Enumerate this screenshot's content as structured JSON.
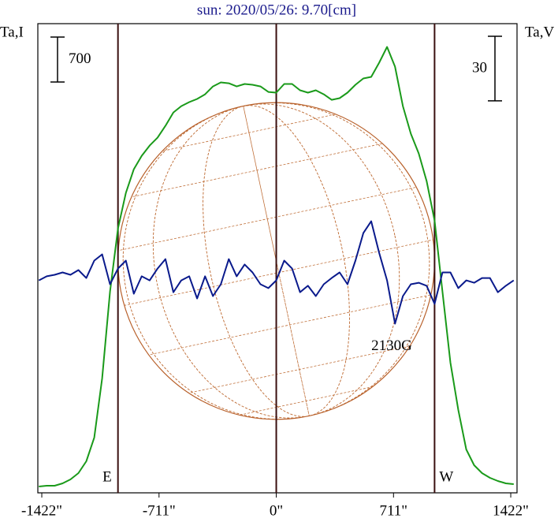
{
  "chart_data": {
    "type": "line",
    "title": "sun: 2020/05/26: 9.70[cm]",
    "y_label": "Ta,I",
    "y2_label": "Ta,V",
    "x": [
      -1440,
      -1392,
      -1344,
      -1296,
      -1248,
      -1200,
      -1152,
      -1104,
      -1056,
      -1008,
      -960,
      -912,
      -864,
      -816,
      -768,
      -720,
      -672,
      -624,
      -576,
      -528,
      -480,
      -432,
      -384,
      -336,
      -288,
      -240,
      -192,
      -144,
      -96,
      -48,
      0,
      48,
      96,
      144,
      192,
      240,
      288,
      336,
      384,
      432,
      480,
      528,
      576,
      624,
      672,
      720,
      768,
      816,
      864,
      912,
      960,
      1008,
      1056,
      1104,
      1152,
      1200,
      1248,
      1296,
      1344,
      1392,
      1440
    ],
    "series": [
      {
        "name": "I",
        "color": "#1a9a1a",
        "axis": "y",
        "values": [
          98,
          111,
          111,
          147,
          209,
          307,
          491,
          860,
          1780,
          3131,
          4114,
          4666,
          5035,
          5244,
          5403,
          5526,
          5710,
          5919,
          6017,
          6079,
          6128,
          6201,
          6324,
          6386,
          6373,
          6324,
          6361,
          6349,
          6324,
          6238,
          6226,
          6361,
          6361,
          6263,
          6226,
          6263,
          6201,
          6115,
          6140,
          6226,
          6349,
          6447,
          6472,
          6693,
          6938,
          6631,
          6017,
          5587,
          5280,
          4851,
          4237,
          3131,
          2026,
          1289,
          675,
          430,
          307,
          233,
          184,
          147,
          135
        ]
      },
      {
        "name": "V",
        "color": "#0a1a8c",
        "axis": "y2",
        "values": [
          0.7,
          2.6,
          3.3,
          4.4,
          3.3,
          5.5,
          1.8,
          9.9,
          12.8,
          -1.1,
          6.2,
          9.9,
          -5.5,
          2.6,
          0.7,
          6.2,
          10.6,
          -4.8,
          0.7,
          2.6,
          -7.7,
          2.6,
          -6.6,
          -1.1,
          10.6,
          2.6,
          8.1,
          4.4,
          -1.1,
          -2.9,
          0.7,
          9.9,
          6.2,
          -4.8,
          -1.8,
          -6.6,
          -1.1,
          1.8,
          4.4,
          -1.1,
          9.9,
          22.7,
          28.2,
          13.5,
          0.7,
          -19.4,
          -6.6,
          -1.1,
          -0.4,
          -1.8,
          -10.2,
          4.4,
          4.4,
          -2.9,
          0.7,
          -0.4,
          1.8,
          1.8,
          -4.8,
          -1.8,
          0.7
        ]
      }
    ],
    "xlim": [
      -1446,
      1460
    ],
    "xticks": [
      {
        "value": -1422,
        "label": "-1422\""
      },
      {
        "value": -711,
        "label": "-711\""
      },
      {
        "value": 0,
        "label": "0\""
      },
      {
        "value": 711,
        "label": "711\""
      },
      {
        "value": 1422,
        "label": "1422\""
      }
    ],
    "ylim": [
      0,
      7300
    ],
    "y2lim": [
      -98,
      120
    ],
    "scale_bars": [
      {
        "value": 700,
        "axis": "y"
      },
      {
        "value": 30,
        "axis": "y2"
      }
    ],
    "limbs": [
      {
        "label": "E",
        "x": -960
      },
      {
        "label": "W",
        "x": 960
      }
    ],
    "annotations": [
      {
        "text": "2130G",
        "x": 700,
        "y": -30,
        "axis": "y2"
      }
    ]
  }
}
